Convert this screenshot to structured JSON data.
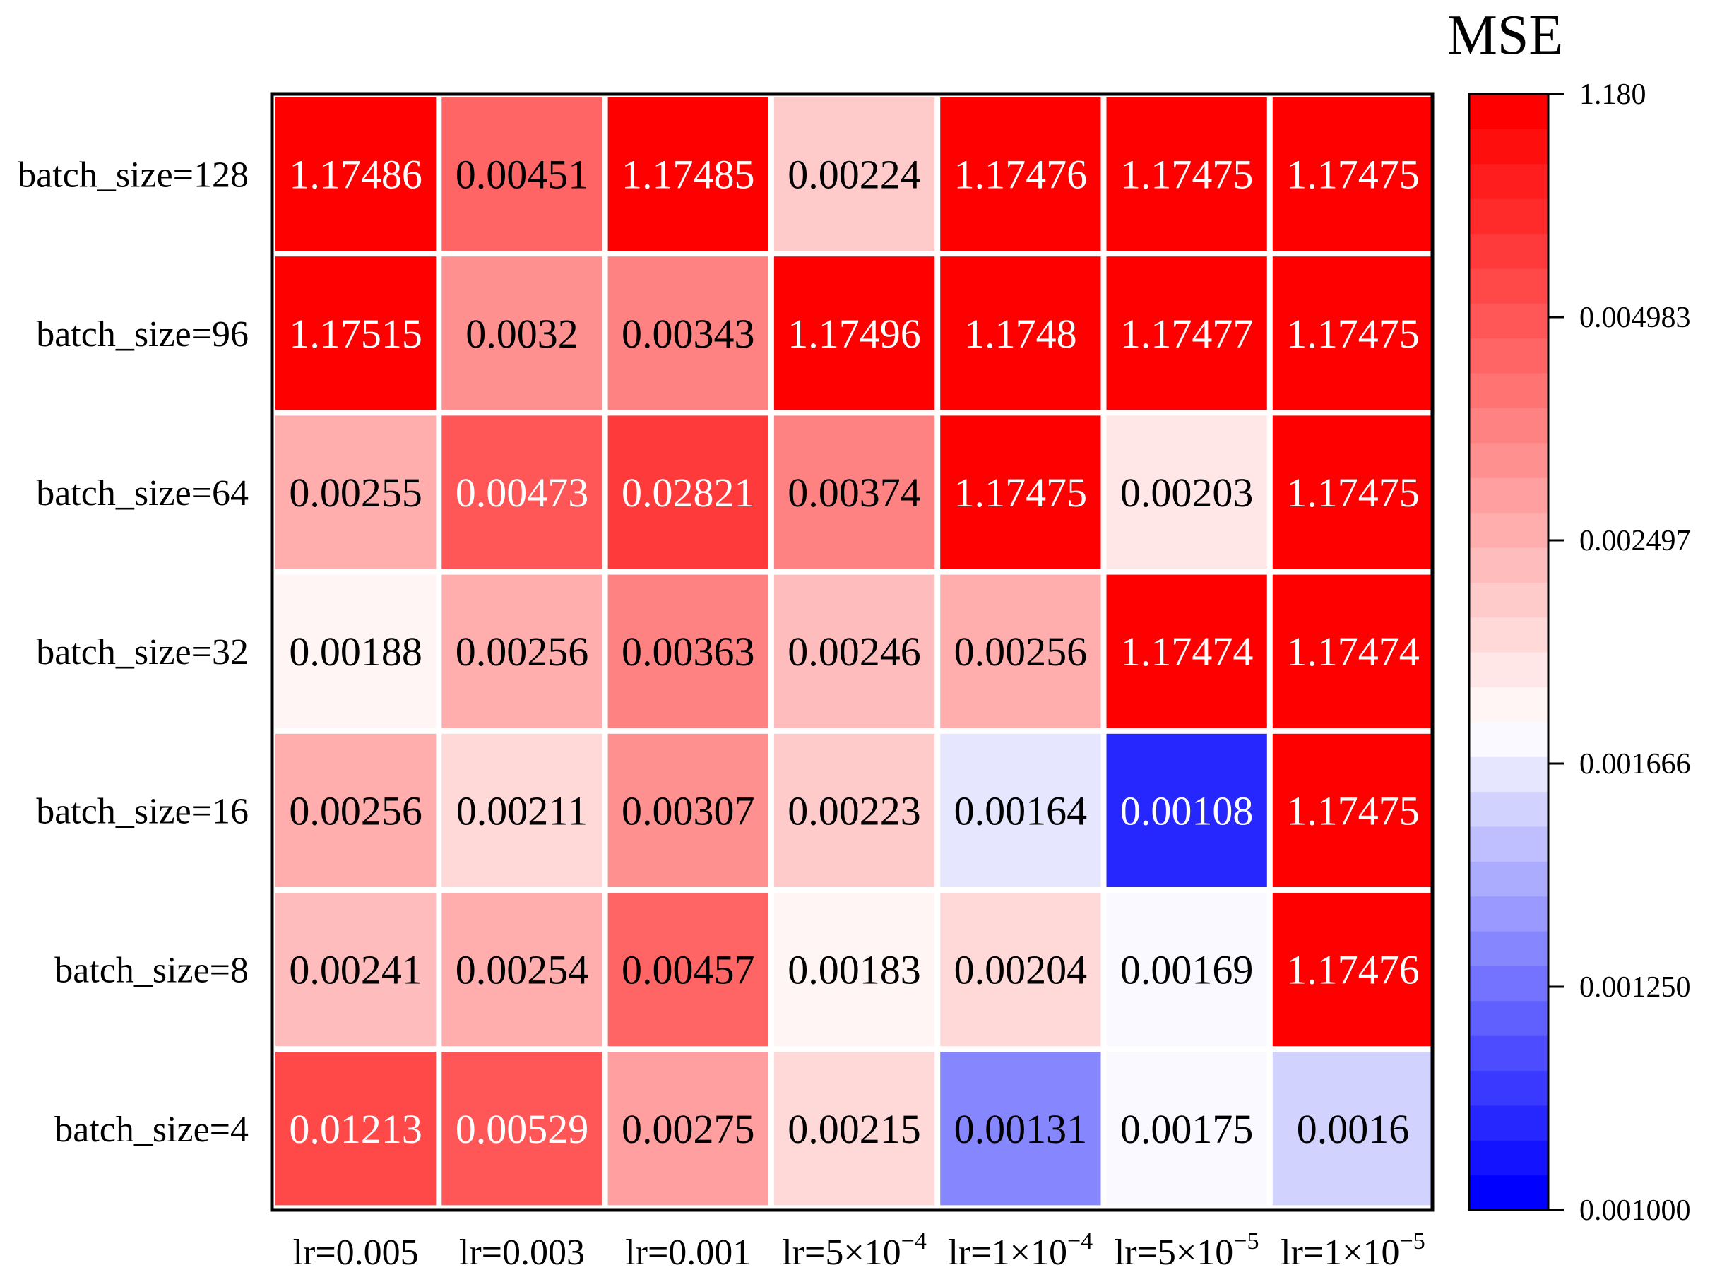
{
  "chart_data": {
    "type": "heatmap",
    "colorbar_title": "MSE",
    "rows": [
      "batch_size=128",
      "batch_size=96",
      "batch_size=64",
      "batch_size=32",
      "batch_size=16",
      "batch_size=8",
      "batch_size=4"
    ],
    "columns": [
      {
        "base": "lr=0.005",
        "exp": ""
      },
      {
        "base": "lr=0.003",
        "exp": ""
      },
      {
        "base": "lr=0.001",
        "exp": ""
      },
      {
        "base": "lr=5×10",
        "exp": "−4"
      },
      {
        "base": "lr=1×10",
        "exp": "−4"
      },
      {
        "base": "lr=5×10",
        "exp": "−5"
      },
      {
        "base": "lr=1×10",
        "exp": "−5"
      }
    ],
    "values": [
      [
        1.17486,
        0.00451,
        1.17485,
        0.00224,
        1.17476,
        1.17475,
        1.17475
      ],
      [
        1.17515,
        0.0032,
        0.00343,
        1.17496,
        1.1748,
        1.17477,
        1.17475
      ],
      [
        0.00255,
        0.00473,
        0.02821,
        0.00374,
        1.17475,
        0.00203,
        1.17475
      ],
      [
        0.00188,
        0.00256,
        0.00363,
        0.00246,
        0.00256,
        1.17474,
        1.17474
      ],
      [
        0.00256,
        0.00211,
        0.00307,
        0.00223,
        0.00164,
        0.00108,
        1.17475
      ],
      [
        0.00241,
        0.00254,
        0.00457,
        0.00183,
        0.00204,
        0.00169,
        1.17476
      ],
      [
        0.01213,
        0.00529,
        0.00275,
        0.00215,
        0.00131,
        0.00175,
        0.0016
      ]
    ],
    "labels": [
      [
        "1.17486",
        "0.00451",
        "1.17485",
        "0.00224",
        "1.17476",
        "1.17475",
        "1.17475"
      ],
      [
        "1.17515",
        "0.0032",
        "0.00343",
        "1.17496",
        "1.1748",
        "1.17477",
        "1.17475"
      ],
      [
        "0.00255",
        "0.00473",
        "0.02821",
        "0.00374",
        "1.17475",
        "0.00203",
        "1.17475"
      ],
      [
        "0.00188",
        "0.00256",
        "0.00363",
        "0.00246",
        "0.00256",
        "1.17474",
        "1.17474"
      ],
      [
        "0.00256",
        "0.00211",
        "0.00307",
        "0.00223",
        "0.00164",
        "0.00108",
        "1.17475"
      ],
      [
        "0.00241",
        "0.00254",
        "0.00457",
        "0.00183",
        "0.00204",
        "0.00169",
        "1.17476"
      ],
      [
        "0.01213",
        "0.00529",
        "0.00275",
        "0.00215",
        "0.00131",
        "0.00175",
        "0.0016"
      ]
    ],
    "colorbar_ticks": [
      {
        "value": 0.001,
        "label": "0.001000"
      },
      {
        "value": 0.00125,
        "label": "0.001250"
      },
      {
        "value": 0.001666,
        "label": "0.001666"
      },
      {
        "value": 0.002497,
        "label": "0.002497"
      },
      {
        "value": 0.004983,
        "label": "0.004983"
      },
      {
        "value": 1.18,
        "label": "1.180"
      }
    ],
    "color_scale": [
      "#0000ff",
      "#ffffff",
      "#ff0000"
    ],
    "colorbar_levels": 32
  }
}
